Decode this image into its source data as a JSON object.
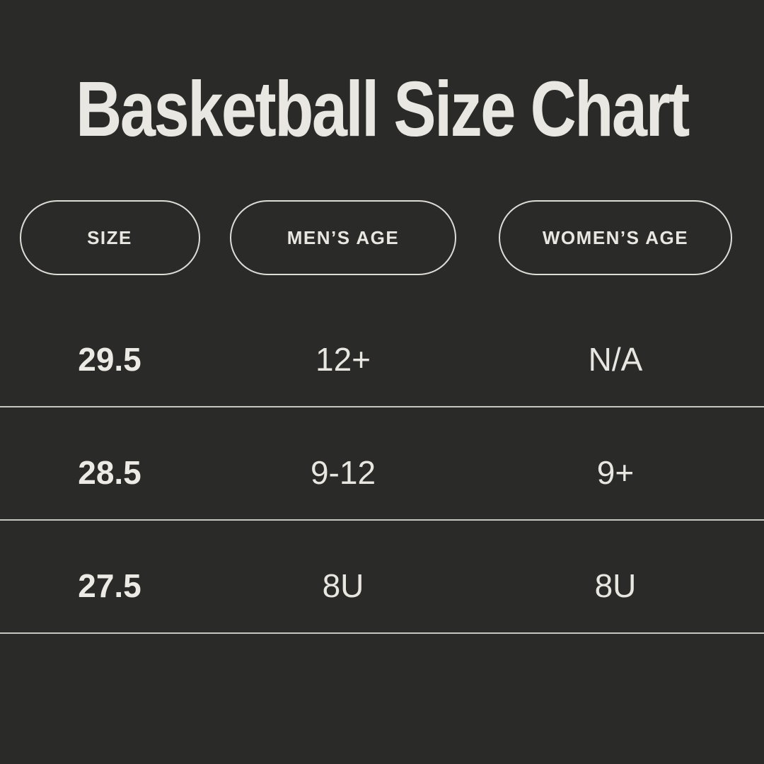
{
  "title": "Basketball Size Chart",
  "colors": {
    "background": "#2a2a28",
    "text": "#e9e7e1",
    "pill_border": "#dedcd6",
    "divider": "#d9d7d1"
  },
  "table": {
    "headers": [
      {
        "label": "SIZE"
      },
      {
        "label": "MEN’S AGE"
      },
      {
        "label": "WOMEN’S AGE"
      }
    ],
    "rows": [
      {
        "size": "29.5",
        "mens_age": "12+",
        "womens_age": "N/A"
      },
      {
        "size": "28.5",
        "mens_age": "9-12",
        "womens_age": "9+"
      },
      {
        "size": "27.5",
        "mens_age": "8U",
        "womens_age": "8U"
      }
    ]
  },
  "chart_data": {
    "type": "table",
    "title": "Basketball Size Chart",
    "columns": [
      "SIZE",
      "MEN’S AGE",
      "WOMEN’S AGE"
    ],
    "rows": [
      [
        "29.5",
        "12+",
        "N/A"
      ],
      [
        "28.5",
        "9-12",
        "9+"
      ],
      [
        "27.5",
        "8U",
        "8U"
      ]
    ],
    "layout_hints": {
      "background": "dark",
      "header_style": "outlined-pill",
      "row_dividers": true
    }
  }
}
